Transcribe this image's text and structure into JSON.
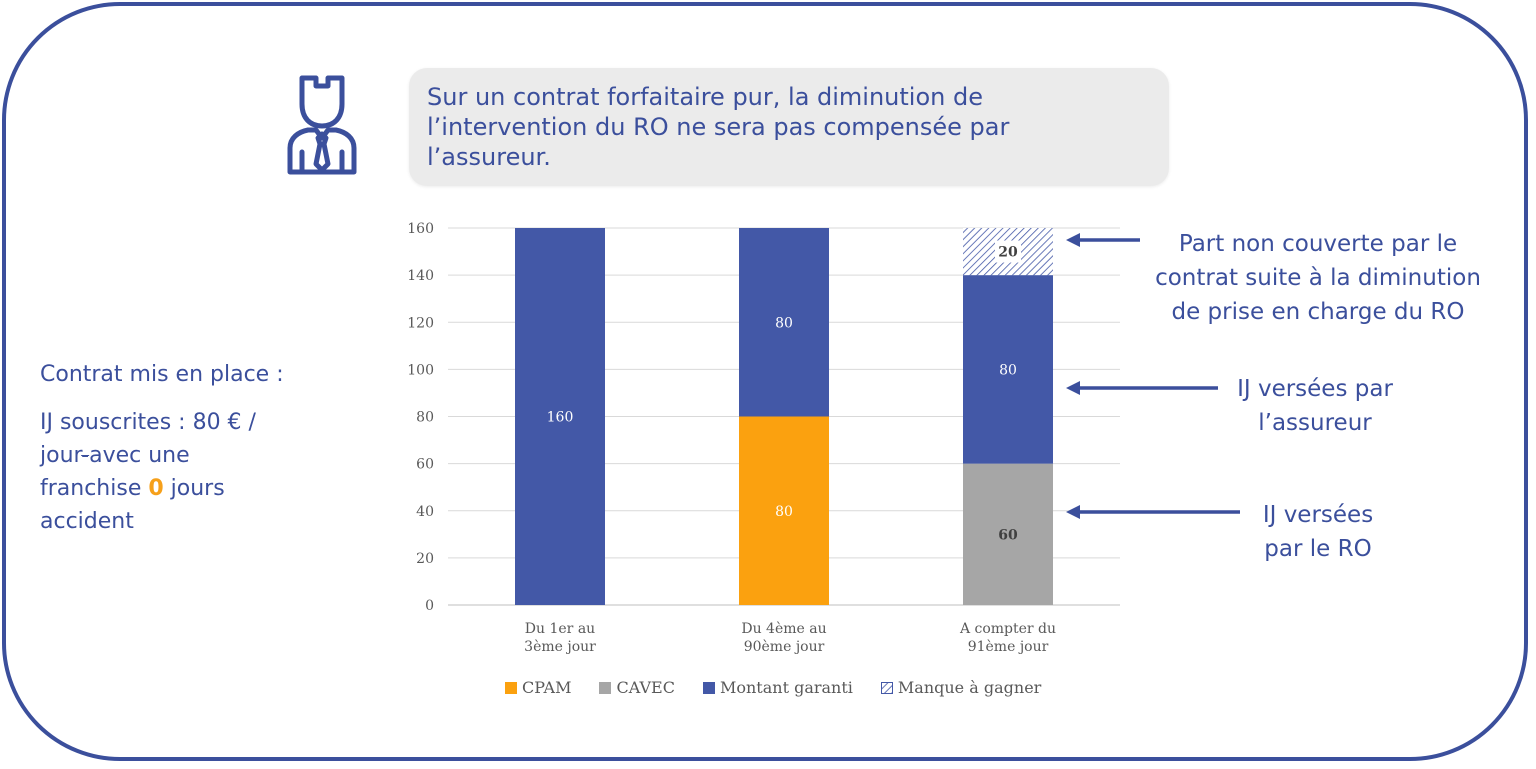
{
  "speech": {
    "lines": [
      "Sur un contrat forfaitaire pur, la diminution de",
      "l’intervention du RO ne sera pas compensée par",
      "l’assureur."
    ]
  },
  "contract": {
    "title": "Contrat mis en place :",
    "line1": "IJ souscrites : 80 € /",
    "line2a": "jour",
    "line2b": "-",
    "line2c": "avec une",
    "line3a": "franchise ",
    "line3b": "0",
    "line3c": " jours",
    "line4": "accident"
  },
  "annotations": {
    "non_covered": [
      "Part non couverte par le",
      "contrat suite à la diminution",
      "de prise en charge du RO"
    ],
    "insurer": [
      "IJ versées par",
      "l’assureur"
    ],
    "ro": [
      "IJ versées",
      "par le RO"
    ]
  },
  "colors": {
    "brand": "#3b4f9c",
    "cpam": "#fba10f",
    "cavec": "#a6a6a6",
    "montant": "#4358a7",
    "manque": "#4358a7",
    "highlight": "#f6a01a"
  },
  "icons": [
    "person-with-tie-icon",
    "arrow-left-icon"
  ],
  "chart_data": {
    "type": "bar",
    "stacked": true,
    "categories": [
      [
        "Du 1er au",
        "3ème jour"
      ],
      [
        "Du 4ème au",
        "90ème jour"
      ],
      [
        "A compter du",
        "91ème jour"
      ]
    ],
    "series": [
      {
        "name": "CPAM",
        "color": "#fba10f",
        "values": [
          0,
          80,
          0
        ]
      },
      {
        "name": "CAVEC",
        "color": "#a6a6a6",
        "values": [
          0,
          0,
          60
        ]
      },
      {
        "name": "Montant garanti",
        "color": "#4358a7",
        "values": [
          160,
          80,
          80
        ]
      },
      {
        "name": "Manque à gagner",
        "color": "#4358a7",
        "pattern": "hatch",
        "values": [
          0,
          0,
          20
        ]
      }
    ],
    "ylim": [
      0,
      160
    ],
    "yticks": [
      0,
      20,
      40,
      60,
      80,
      100,
      120,
      140,
      160
    ],
    "grid": true,
    "legend": "bottom"
  }
}
